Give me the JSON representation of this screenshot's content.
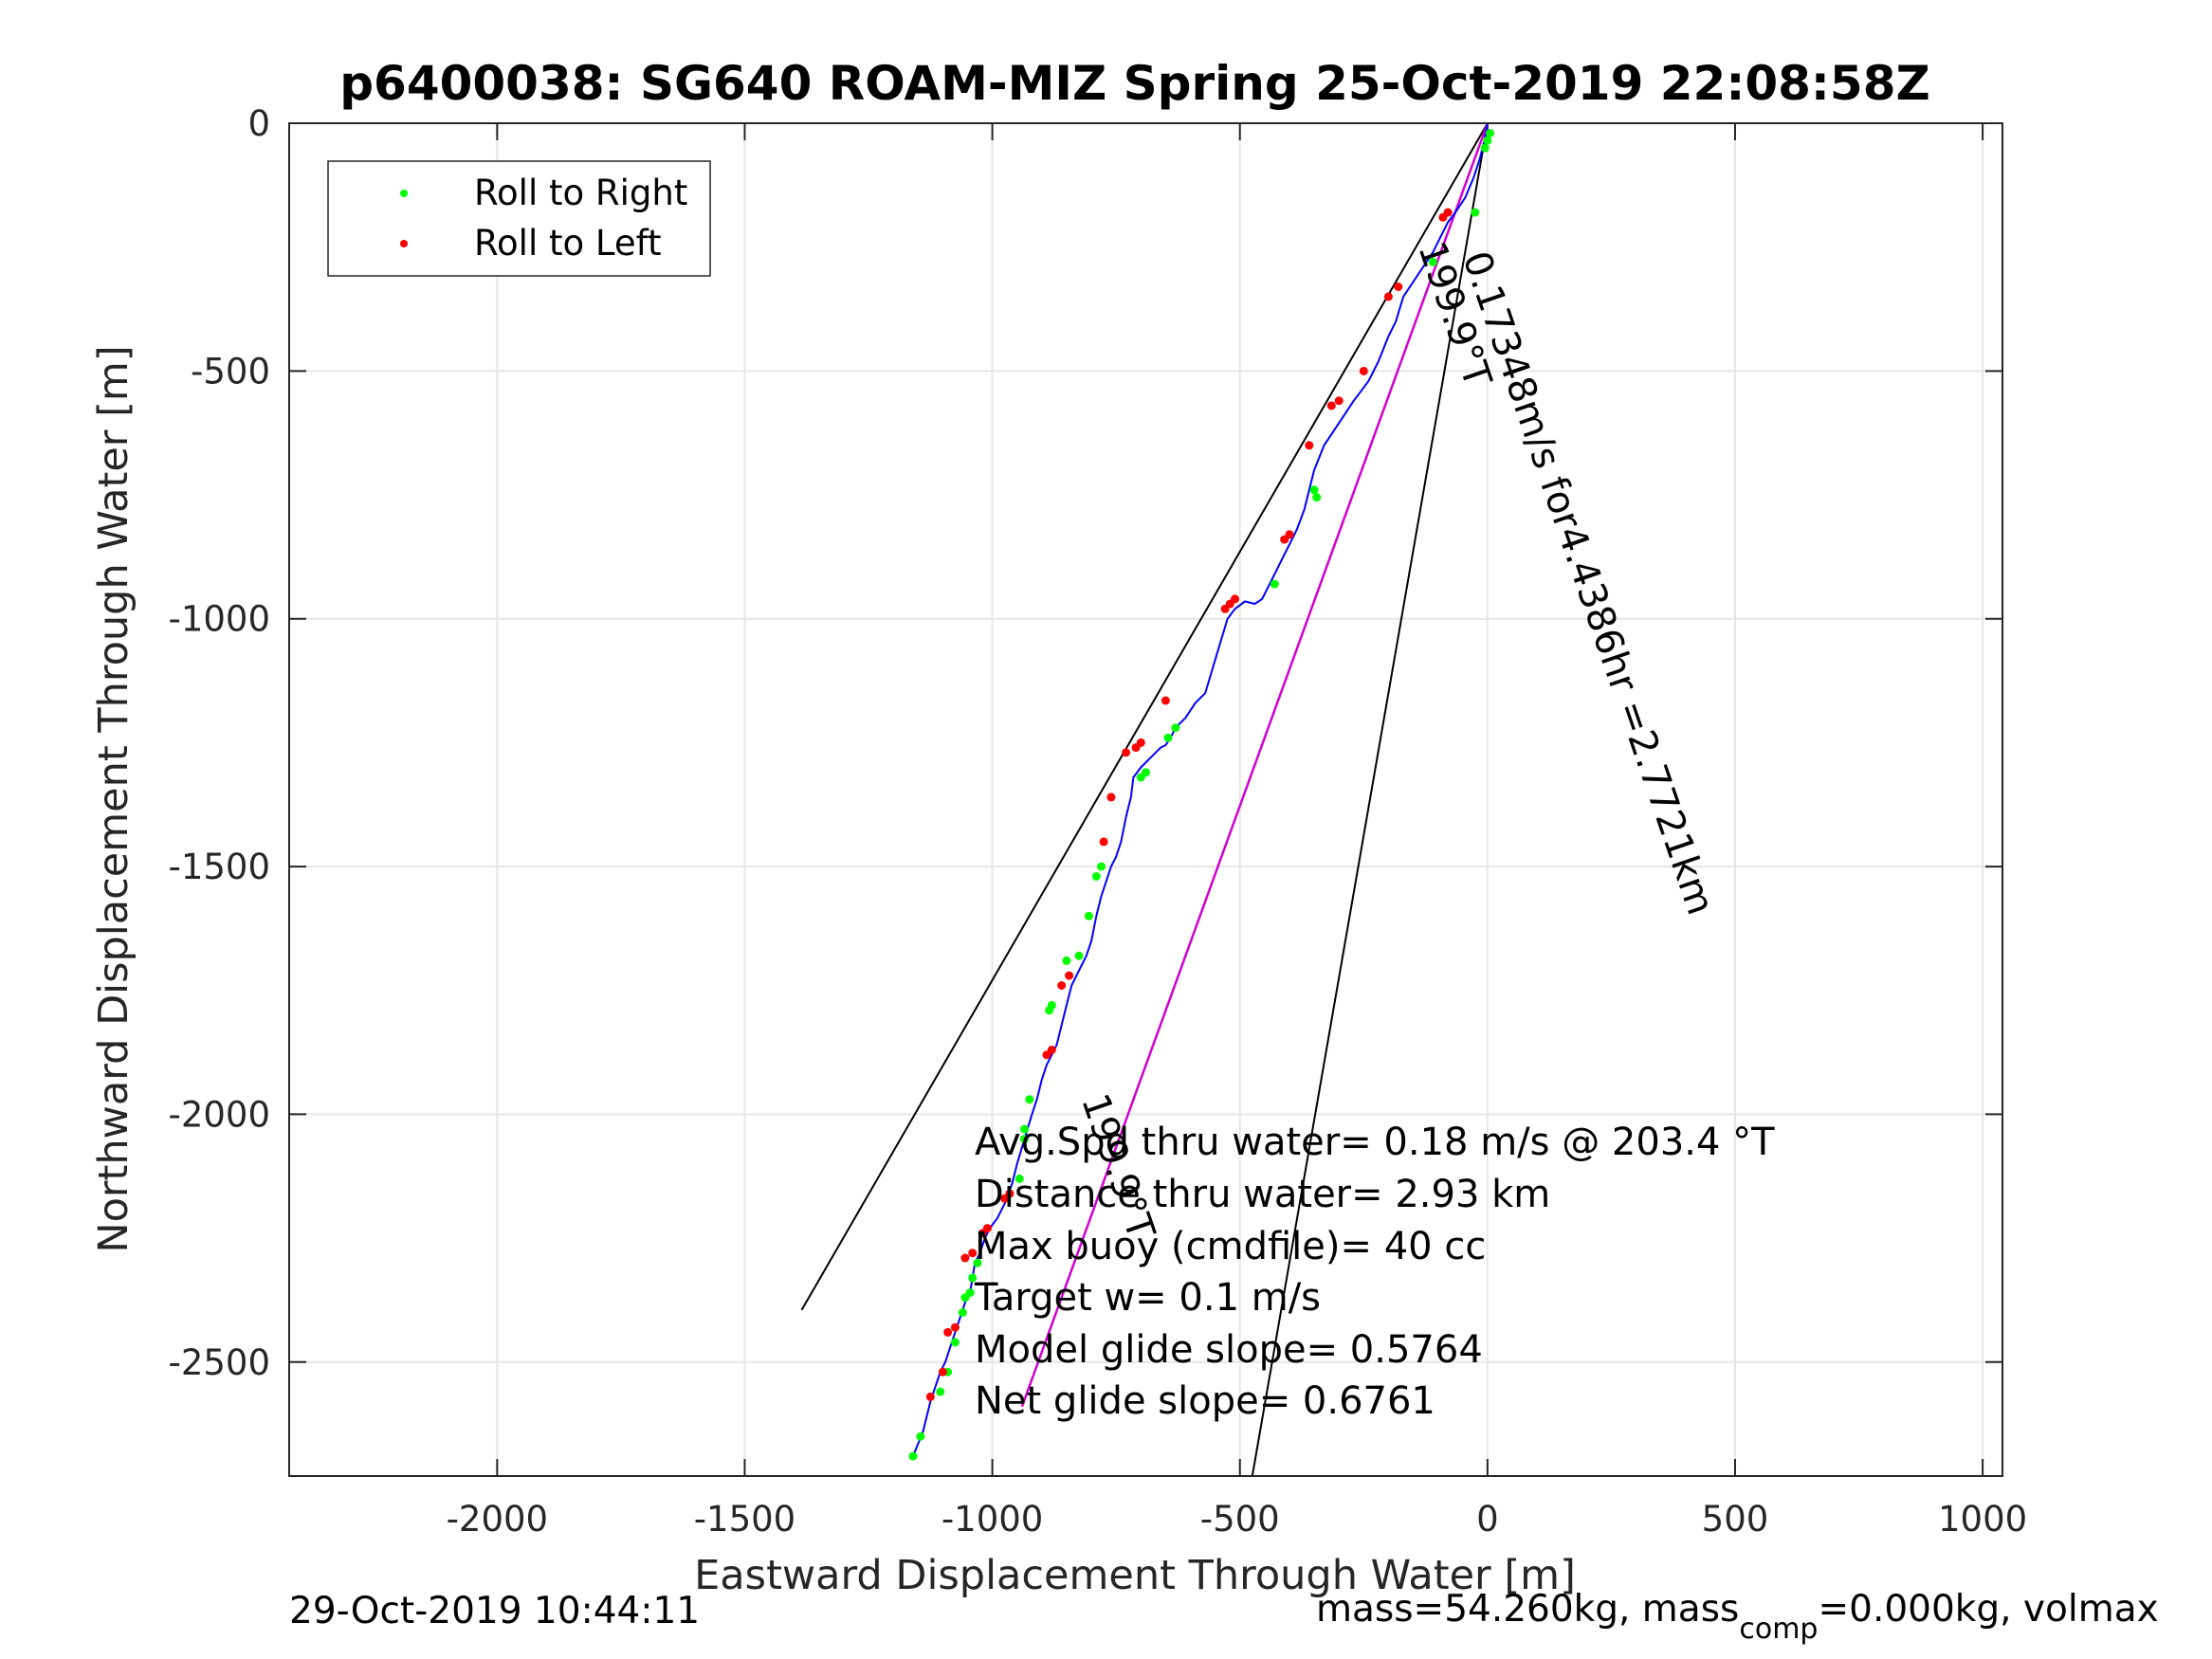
{
  "chart_data": {
    "type": "line",
    "title": "p6400038: SG640 ROAM-MIZ Spring 25-Oct-2019 22:08:58Z",
    "xlabel": "Eastward Displacement Through Water [m]",
    "ylabel": "Northward Displacement Through Water [m]",
    "xlim": [
      -2420,
      1040
    ],
    "ylim": [
      -2730,
      0
    ],
    "xticks": [
      -2000,
      -1500,
      -1000,
      -500,
      0,
      500,
      1000
    ],
    "yticks": [
      0,
      -500,
      -1000,
      -1500,
      -2000,
      -2500
    ],
    "grid": true,
    "legend": {
      "position": "top-left",
      "entries": [
        "Roll to Right",
        "Roll to Left"
      ]
    },
    "colors": {
      "track": "#0000ff",
      "roll_right": "#00ff00",
      "roll_left": "#ff0000",
      "heading_line": "#d000d0",
      "ref_lines": "#000000",
      "grid": "#e6e6e6"
    },
    "series": [
      {
        "name": "track",
        "x": [
          0,
          -5,
          -15,
          -28,
          -45,
          -65,
          -80,
          -95,
          -110,
          -130,
          -150,
          -170,
          -185,
          -200,
          -220,
          -240,
          -255,
          -270,
          -290,
          -310,
          -330,
          -350,
          -360,
          -370,
          -385,
          -400,
          -415,
          -430,
          -440,
          -455,
          -470,
          -490,
          -510,
          -525,
          -540,
          -555,
          -570,
          -590,
          -610,
          -630,
          -640,
          -650,
          -660,
          -680,
          -700,
          -715,
          -720,
          -730,
          -740,
          -750,
          -760,
          -770,
          -780,
          -790,
          -800,
          -810,
          -820,
          -830,
          -840,
          -850,
          -860,
          -870,
          -880,
          -890,
          -900,
          -910,
          -920,
          -935,
          -950,
          -960,
          -975,
          -990,
          -1005,
          -1015,
          -1025,
          -1035,
          -1040,
          -1045,
          -1055,
          -1065,
          -1075,
          -1085,
          -1095,
          -1105,
          -1115,
          -1125,
          -1140,
          -1160
        ],
        "y": [
          0,
          -30,
          -70,
          -110,
          -150,
          -180,
          -200,
          -230,
          -260,
          -290,
          -320,
          -350,
          -400,
          -430,
          -480,
          -520,
          -540,
          -560,
          -590,
          -620,
          -650,
          -700,
          -740,
          -780,
          -820,
          -850,
          -880,
          -910,
          -930,
          -960,
          -970,
          -965,
          -980,
          -1000,
          -1050,
          -1100,
          -1150,
          -1170,
          -1200,
          -1220,
          -1240,
          -1255,
          -1260,
          -1280,
          -1300,
          -1320,
          -1360,
          -1400,
          -1450,
          -1480,
          -1500,
          -1530,
          -1560,
          -1600,
          -1650,
          -1680,
          -1700,
          -1720,
          -1740,
          -1780,
          -1820,
          -1860,
          -1880,
          -1900,
          -1930,
          -1970,
          -2000,
          -2050,
          -2100,
          -2140,
          -2180,
          -2210,
          -2230,
          -2250,
          -2280,
          -2300,
          -2330,
          -2360,
          -2380,
          -2410,
          -2440,
          -2470,
          -2500,
          -2520,
          -2550,
          -2580,
          -2640,
          -2690
        ]
      },
      {
        "name": "Roll to Right",
        "x": [
          5,
          0,
          -5,
          -25,
          -110,
          -350,
          -345,
          -430,
          -630,
          -645,
          -690,
          -700,
          -780,
          -790,
          -805,
          -825,
          -850,
          -880,
          -885,
          -925,
          -935,
          -935,
          -945,
          -1030,
          -1040,
          -1045,
          -1055,
          -1060,
          -1075,
          -1090,
          -1105,
          -1145,
          -1160
        ],
        "y": [
          -20,
          -35,
          -50,
          -180,
          -280,
          -740,
          -755,
          -930,
          -1220,
          -1240,
          -1310,
          -1320,
          -1500,
          -1520,
          -1600,
          -1680,
          -1690,
          -1780,
          -1790,
          -1970,
          -2030,
          -2050,
          -2130,
          -2300,
          -2330,
          -2360,
          -2370,
          -2400,
          -2460,
          -2520,
          -2560,
          -2650,
          -2690
        ]
      },
      {
        "name": "Roll to Left",
        "x": [
          -80,
          -90,
          -180,
          -200,
          -250,
          -300,
          -315,
          -360,
          -400,
          -410,
          -510,
          -520,
          -530,
          -650,
          -700,
          -710,
          -730,
          -760,
          -775,
          -845,
          -860,
          -880,
          -890,
          -965,
          -975,
          -1010,
          -1020,
          -1040,
          -1055,
          -1075,
          -1090,
          -1100,
          -1125
        ],
        "y": [
          -180,
          -190,
          -330,
          -350,
          -500,
          -560,
          -570,
          -650,
          -830,
          -840,
          -960,
          -970,
          -980,
          -1165,
          -1250,
          -1260,
          -1270,
          -1360,
          -1450,
          -1720,
          -1740,
          -1870,
          -1880,
          -2160,
          -2170,
          -2230,
          -2240,
          -2280,
          -2290,
          -2430,
          -2440,
          -2520,
          -2570
        ]
      },
      {
        "name": "heading",
        "x": [
          0,
          -940
        ],
        "y": [
          0,
          -2590
        ]
      },
      {
        "name": "reference-left",
        "x": [
          0,
          -1385
        ],
        "y": [
          0,
          -2395
        ]
      },
      {
        "name": "reference-right",
        "x": [
          0,
          -475
        ],
        "y": [
          0,
          -2730
        ]
      }
    ],
    "annotations": [
      {
        "text": "0.17348m/s for4.4386hr =2.7721km",
        "x": -50,
        "y": -270,
        "angle": 71
      },
      {
        "text": "199.9°T",
        "x": -140,
        "y": -250,
        "angle": 71
      },
      {
        "text": "199.9°T",
        "x": -820,
        "y": -1970,
        "angle": 71
      }
    ]
  },
  "stats": {
    "line1": "Avg.Spd thru water=  0.18 m/s @ 203.4 °T",
    "line2": "Distance thru water=  2.93 km",
    "line3": "Max buoy (cmdfile)= 40 cc",
    "line4": "Target w= 0.1 m/s",
    "line5": "Model glide slope= 0.5764",
    "line6": "Net glide slope= 0.6761"
  },
  "footer": {
    "date": "29-Oct-2019 10:44:11",
    "mass_prefix": "mass=54.260kg, mass",
    "mass_sub": "comp",
    "mass_suffix": "=0.000kg, volmax"
  }
}
